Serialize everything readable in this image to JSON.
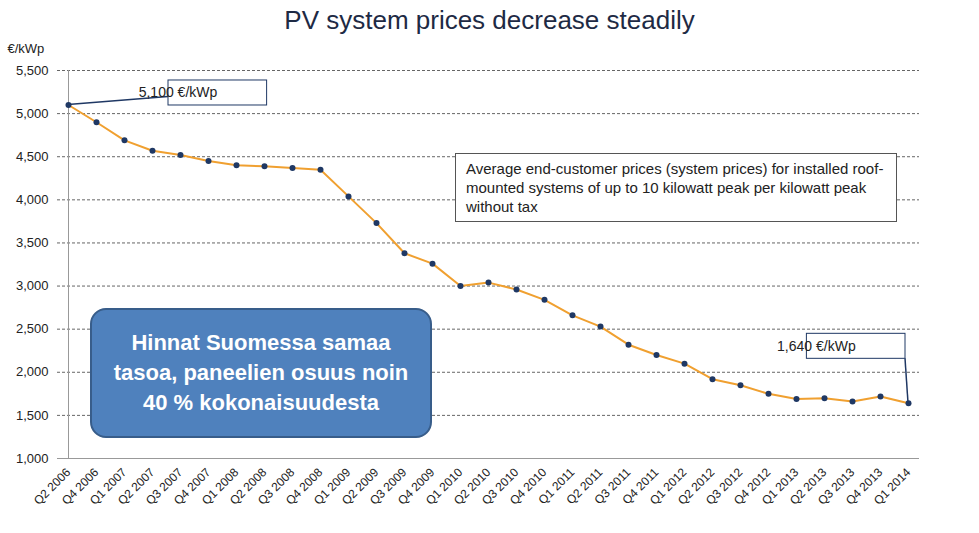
{
  "chart_data": {
    "type": "line",
    "title": "PV system prices decrease steadily",
    "y_label": "€/kWp",
    "categories": [
      "Q2 2006",
      "Q4 2006",
      "Q1 2007",
      "Q2 2007",
      "Q3 2007",
      "Q4 2007",
      "Q1 2008",
      "Q2 2008",
      "Q3 2008",
      "Q4 2008",
      "Q1 2009",
      "Q2 2009",
      "Q3 2009",
      "Q4 2009",
      "Q1 2010",
      "Q2 2010",
      "Q3 2010",
      "Q4 2010",
      "Q1 2011",
      "Q2 2011",
      "Q3 2011",
      "Q4 2011",
      "Q1 2012",
      "Q2 2012",
      "Q3 2012",
      "Q4 2012",
      "Q1 2013",
      "Q2 2013",
      "Q3 2013",
      "Q4 2013",
      "Q1 2014"
    ],
    "values": [
      5100,
      4900,
      4690,
      4570,
      4520,
      4450,
      4400,
      4390,
      4370,
      4350,
      4040,
      3730,
      3380,
      3260,
      3000,
      3040,
      2960,
      2840,
      2660,
      2530,
      2320,
      2200,
      2100,
      1920,
      1850,
      1750,
      1690,
      1700,
      1660,
      1720,
      1640
    ],
    "color": "#f0a030",
    "marker": "circle",
    "ylim": [
      1000,
      5500
    ],
    "yticks": [
      {
        "value": 1000,
        "label": "1,000"
      },
      {
        "value": 1500,
        "label": "1,500"
      },
      {
        "value": 2000,
        "label": "2,000"
      },
      {
        "value": 2500,
        "label": "2,500"
      },
      {
        "value": 3000,
        "label": "3,000"
      },
      {
        "value": 3500,
        "label": "3,500"
      },
      {
        "value": 4000,
        "label": "4,000"
      },
      {
        "value": 4500,
        "label": "4,500"
      },
      {
        "value": 5000,
        "label": "5,000"
      },
      {
        "value": 5500,
        "label": "5,500"
      }
    ],
    "grid": true,
    "annotations": [
      {
        "text": "5,100 €/kWp",
        "category": "Q2 2006"
      },
      {
        "text": "1,640 €/kWp",
        "category": "Q1 2014"
      }
    ],
    "notes": [
      "Average end-customer prices (system prices) for installed roof-mounted systems of up to 10 kilowatt peak per kilowatt peak without tax",
      "Hinnat Suomessa samaa tasoa, paneelien osuus noin 40 % kokonaisuudesta"
    ]
  }
}
